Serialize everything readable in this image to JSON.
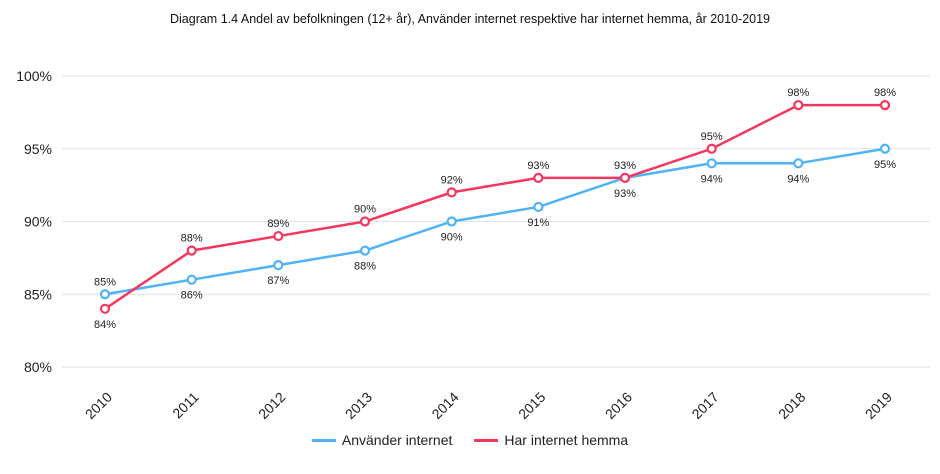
{
  "chart_data": {
    "type": "line",
    "title": "Diagram 1.4 Andel av befolkningen (12+ år), Använder internet respektive har internet hemma, år 2010-2019",
    "xlabel": "",
    "ylabel": "",
    "categories": [
      "2010",
      "2011",
      "2012",
      "2013",
      "2014",
      "2015",
      "2016",
      "2017",
      "2018",
      "2019"
    ],
    "ylim": [
      80,
      100
    ],
    "yticks": [
      80,
      85,
      90,
      95,
      100
    ],
    "ytick_labels": [
      "80%",
      "85%",
      "90%",
      "95%",
      "100%"
    ],
    "grid": true,
    "legend_position": "bottom",
    "series": [
      {
        "name": "Använder internet",
        "color": "#4fb3f6",
        "values": [
          85,
          86,
          87,
          88,
          90,
          91,
          93,
          94,
          94,
          95
        ]
      },
      {
        "name": "Har internet hemma",
        "color": "#f4375e",
        "values": [
          84,
          88,
          89,
          90,
          92,
          93,
          93,
          95,
          98,
          98
        ]
      }
    ]
  }
}
